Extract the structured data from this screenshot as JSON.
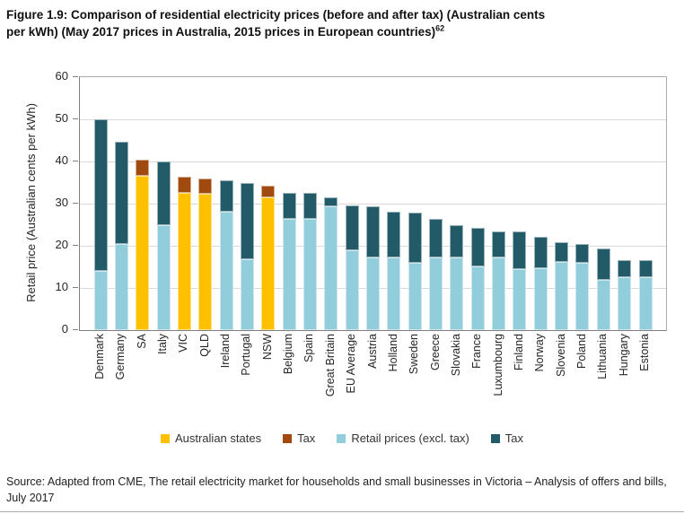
{
  "title": {
    "line1": "Figure 1.9: Comparison of residential electricity prices (before and after tax) (Australian cents",
    "line2": "per kWh) (May 2017 prices in Australia, 2015 prices in European countries)",
    "superscript": "62"
  },
  "source": {
    "text": "Source: Adapted from CME, The retail electricity market for households and small businesses in Victoria – Analysis of offers and bills, July 2017"
  },
  "colors": {
    "australian_state": "#FFC000",
    "australian_tax": "#A04A10",
    "retail_excl_tax": "#92CDDC",
    "tax": "#235A68",
    "gridline": "#D9D9D9",
    "axis": "#808080"
  },
  "legend": {
    "items": [
      {
        "label": "Australian states",
        "color": "#FFC000"
      },
      {
        "label": "Tax",
        "color": "#A04A10"
      },
      {
        "label": "Retail prices (excl. tax)",
        "color": "#92CDDC"
      },
      {
        "label": "Tax",
        "color": "#235A68"
      }
    ]
  },
  "chart_data": {
    "type": "bar",
    "stacked": true,
    "title": "Figure 1.9: Comparison of residential electricity prices (before and after tax) (Australian cents per kWh) (May 2017 prices in Australia, 2015 prices in European countries)",
    "xlabel": "",
    "ylabel": "Retail price (Australian cents per kWh)",
    "ylim": [
      0,
      60
    ],
    "yticks": [
      0,
      10,
      20,
      30,
      40,
      50,
      60
    ],
    "grid": true,
    "legend_position": "bottom",
    "categories": [
      "Denmark",
      "Germany",
      "SA",
      "Italy",
      "VIC",
      "QLD",
      "Ireland",
      "Portugal",
      "NSW",
      "Belgium",
      "Spain",
      "Great Britain",
      "EU Average",
      "Austria",
      "Holland",
      "Sweden",
      "Greece",
      "Slovakia",
      "France",
      "Luxumbourg",
      "Finland",
      "Norway",
      "Slovenia",
      "Poland",
      "Lithuania",
      "Hungary",
      "Estonia"
    ],
    "australian_states": [
      "SA",
      "VIC",
      "QLD",
      "NSW"
    ],
    "series": [
      {
        "name": "Retail prices (excl. tax)",
        "color": "#92CDDC",
        "australian_color": "#FFC000",
        "values": [
          14.0,
          20.4,
          36.7,
          24.8,
          32.6,
          32.3,
          28.0,
          16.8,
          31.4,
          26.3,
          26.3,
          29.4,
          19.0,
          17.3,
          17.3,
          16.0,
          17.3,
          17.3,
          15.2,
          17.3,
          14.5,
          14.6,
          16.2,
          16.0,
          12.0,
          12.5,
          12.5
        ]
      },
      {
        "name": "Tax",
        "color": "#235A68",
        "australian_color": "#A04A10",
        "values": [
          36.0,
          24.2,
          3.8,
          15.2,
          3.7,
          3.7,
          7.6,
          18.2,
          2.9,
          6.2,
          6.2,
          2.0,
          10.6,
          12.1,
          10.8,
          11.9,
          9.1,
          7.7,
          9.1,
          6.2,
          9.0,
          7.5,
          4.6,
          4.4,
          7.3,
          4.2,
          4.2
        ]
      }
    ],
    "totals": [
      50.0,
      44.6,
      40.5,
      40.0,
      36.3,
      36.0,
      35.6,
      35.0,
      34.3,
      32.5,
      32.5,
      31.4,
      29.6,
      29.4,
      28.1,
      27.9,
      26.4,
      25.0,
      24.3,
      23.5,
      23.5,
      22.1,
      20.8,
      20.4,
      19.3,
      16.7,
      16.7
    ]
  }
}
